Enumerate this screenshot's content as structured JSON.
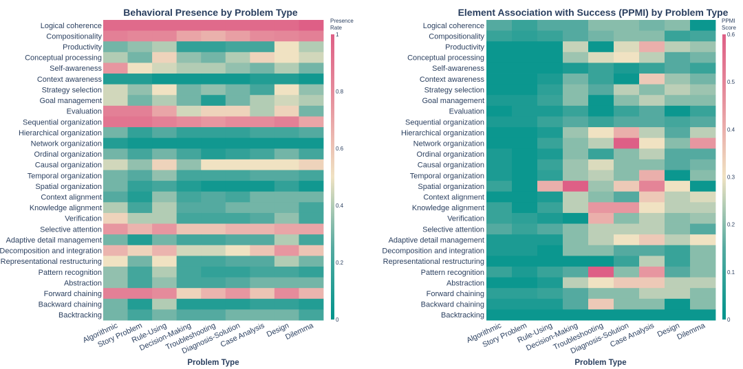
{
  "chart_data": [
    {
      "type": "heatmap",
      "title": "Behavioral Presence by Problem Type",
      "xlabel": "Problem Type",
      "ylabel": "",
      "colorbar_title": [
        "Presence",
        "Rate"
      ],
      "colorbar_ticks": [
        "0",
        "0.2",
        "0.4",
        "0.6",
        "0.8",
        "1"
      ],
      "zlim": [
        0,
        1
      ],
      "rows": [
        "Logical coherence",
        "Compositionality",
        "Productivity",
        "Conceptual processing",
        "Self-awareness",
        "Context awareness",
        "Strategy selection",
        "Goal management",
        "Evaluation",
        "Sequential organization",
        "Hierarchical organization",
        "Network organization",
        "Ordinal organization",
        "Causal organization",
        "Temporal organization",
        "Spatial organization",
        "Context alignment",
        "Knowledge alignment",
        "Verification",
        "Selective attention",
        "Adaptive detail management",
        "Decomposition and integration",
        "Representational restructuring",
        "Pattern recognition",
        "Abstraction",
        "Forward chaining",
        "Backward chaining",
        "Backtracking"
      ],
      "columns": [
        "Algorithmic",
        "Story Problem",
        "Rule-Using",
        "Decision-Making",
        "Troubleshooting",
        "Diagnosis-Solution",
        "Case Analysis",
        "Design",
        "Dilemma"
      ],
      "values": [
        [
          0.95,
          0.95,
          0.95,
          0.95,
          0.95,
          0.95,
          0.95,
          0.95,
          1.0
        ],
        [
          0.85,
          0.82,
          0.82,
          0.7,
          0.66,
          0.72,
          0.8,
          0.82,
          0.85
        ],
        [
          0.3,
          0.35,
          0.4,
          0.15,
          0.15,
          0.2,
          0.2,
          0.5,
          0.4
        ],
        [
          0.4,
          0.3,
          0.55,
          0.35,
          0.3,
          0.4,
          0.55,
          0.5,
          0.45
        ],
        [
          0.75,
          0.5,
          0.45,
          0.4,
          0.4,
          0.35,
          0.3,
          0.4,
          0.3
        ],
        [
          0.1,
          0.1,
          0.05,
          0.05,
          0.05,
          0.05,
          0.1,
          0.1,
          0.05
        ],
        [
          0.45,
          0.35,
          0.5,
          0.3,
          0.35,
          0.3,
          0.2,
          0.5,
          0.35
        ],
        [
          0.45,
          0.3,
          0.4,
          0.3,
          0.1,
          0.3,
          0.4,
          0.45,
          0.4
        ],
        [
          0.85,
          0.85,
          0.7,
          0.45,
          0.55,
          0.55,
          0.4,
          0.55,
          0.3
        ],
        [
          0.9,
          0.9,
          0.85,
          0.8,
          0.75,
          0.8,
          0.8,
          0.85,
          0.7
        ],
        [
          0.3,
          0.15,
          0.25,
          0.15,
          0.15,
          0.15,
          0.2,
          0.2,
          0.25
        ],
        [
          0.1,
          0.05,
          0.05,
          0.05,
          0.05,
          0.05,
          0.05,
          0.05,
          0.05
        ],
        [
          0.3,
          0.2,
          0.3,
          0.2,
          0.1,
          0.15,
          0.2,
          0.3,
          0.2
        ],
        [
          0.45,
          0.35,
          0.55,
          0.35,
          0.5,
          0.5,
          0.5,
          0.5,
          0.55
        ],
        [
          0.3,
          0.25,
          0.35,
          0.2,
          0.2,
          0.2,
          0.25,
          0.25,
          0.2
        ],
        [
          0.3,
          0.15,
          0.2,
          0.1,
          0.05,
          0.05,
          0.05,
          0.15,
          0.05
        ],
        [
          0.25,
          0.1,
          0.35,
          0.2,
          0.25,
          0.2,
          0.3,
          0.3,
          0.3
        ],
        [
          0.4,
          0.2,
          0.4,
          0.25,
          0.25,
          0.3,
          0.3,
          0.3,
          0.2
        ],
        [
          0.55,
          0.4,
          0.4,
          0.2,
          0.2,
          0.2,
          0.25,
          0.35,
          0.2
        ],
        [
          0.75,
          0.65,
          0.75,
          0.6,
          0.6,
          0.65,
          0.65,
          0.7,
          0.7
        ],
        [
          0.3,
          0.1,
          0.3,
          0.2,
          0.2,
          0.25,
          0.25,
          0.4,
          0.2
        ],
        [
          0.65,
          0.55,
          0.65,
          0.45,
          0.45,
          0.5,
          0.6,
          0.75,
          0.6
        ],
        [
          0.5,
          0.3,
          0.5,
          0.2,
          0.2,
          0.25,
          0.25,
          0.4,
          0.3
        ],
        [
          0.35,
          0.2,
          0.4,
          0.2,
          0.15,
          0.15,
          0.2,
          0.2,
          0.15
        ],
        [
          0.35,
          0.2,
          0.35,
          0.2,
          0.2,
          0.25,
          0.3,
          0.3,
          0.3
        ],
        [
          0.85,
          0.85,
          0.8,
          0.55,
          0.65,
          0.75,
          0.6,
          0.8,
          0.65
        ],
        [
          0.3,
          0.1,
          0.4,
          0.1,
          0.1,
          0.1,
          0.15,
          0.15,
          0.1
        ],
        [
          0.3,
          0.2,
          0.3,
          0.25,
          0.25,
          0.3,
          0.3,
          0.3,
          0.2
        ]
      ]
    },
    {
      "type": "heatmap",
      "title": "Element Association with Success (PPMI) by Problem Type",
      "xlabel": "Problem Type",
      "ylabel": "",
      "colorbar_title": [
        "PPMI",
        "Score"
      ],
      "colorbar_ticks": [
        "0",
        "0.1",
        "0.2",
        "0.3",
        "0.4",
        "0.5",
        "0.6"
      ],
      "zlim": [
        0,
        0.6
      ],
      "rows": [
        "Logical coherence",
        "Compositionality",
        "Productivity",
        "Conceptual processing",
        "Self-awareness",
        "Context awareness",
        "Strategy selection",
        "Goal management",
        "Evaluation",
        "Sequential organization",
        "Hierarchical organization",
        "Network organization",
        "Ordinal organization",
        "Causal organization",
        "Temporal organization",
        "Spatial organization",
        "Context alignment",
        "Knowledge alignment",
        "Verification",
        "Selective attention",
        "Adaptive detail management",
        "Decomposition and integration",
        "Representational restructuring",
        "Pattern recognition",
        "Abstraction",
        "Forward chaining",
        "Backward chaining",
        "Backtracking"
      ],
      "columns": [
        "Algorithmic",
        "Story Problem",
        "Rule-Using",
        "Decision-Making",
        "Troubleshooting",
        "Diagnosis-Solution",
        "Case Analysis",
        "Design",
        "Dilemma"
      ],
      "values": [
        [
          0.15,
          0.1,
          0.15,
          0.15,
          0.2,
          0.2,
          0.18,
          0.2,
          0.02
        ],
        [
          0.1,
          0.08,
          0.1,
          0.15,
          0.18,
          0.2,
          0.2,
          0.1,
          0.12
        ],
        [
          0.02,
          0.02,
          0.02,
          0.26,
          0.02,
          0.28,
          0.4,
          0.25,
          0.22
        ],
        [
          0.02,
          0.02,
          0.02,
          0.22,
          0.28,
          0.3,
          0.25,
          0.15,
          0.18
        ],
        [
          0.02,
          0.02,
          0.02,
          0.05,
          0.1,
          0.05,
          0.1,
          0.15,
          0.1
        ],
        [
          0.02,
          0.02,
          0.05,
          0.18,
          0.1,
          0.02,
          0.35,
          0.22,
          0.18
        ],
        [
          0.02,
          0.02,
          0.08,
          0.2,
          0.15,
          0.25,
          0.2,
          0.25,
          0.22
        ],
        [
          0.05,
          0.05,
          0.1,
          0.2,
          0.02,
          0.2,
          0.25,
          0.2,
          0.2
        ],
        [
          0.02,
          0.05,
          0.05,
          0.1,
          0.02,
          0.1,
          0.15,
          0.02,
          0.1
        ],
        [
          0.05,
          0.05,
          0.1,
          0.15,
          0.1,
          0.15,
          0.15,
          0.12,
          0.15
        ],
        [
          0.02,
          0.02,
          0.05,
          0.22,
          0.3,
          0.4,
          0.25,
          0.15,
          0.25
        ],
        [
          0.02,
          0.02,
          0.1,
          0.2,
          0.25,
          0.6,
          0.3,
          0.2,
          0.45
        ],
        [
          0.05,
          0.02,
          0.05,
          0.2,
          0.1,
          0.2,
          0.25,
          0.15,
          0.15
        ],
        [
          0.05,
          0.02,
          0.1,
          0.22,
          0.28,
          0.2,
          0.2,
          0.15,
          0.18
        ],
        [
          0.05,
          0.02,
          0.08,
          0.22,
          0.25,
          0.2,
          0.4,
          0.02,
          0.2
        ],
        [
          0.1,
          0.02,
          0.4,
          0.6,
          0.22,
          0.35,
          0.5,
          0.3,
          0.02
        ],
        [
          0.02,
          0.02,
          0.05,
          0.25,
          0.2,
          0.15,
          0.35,
          0.25,
          0.28
        ],
        [
          0.1,
          0.02,
          0.1,
          0.25,
          0.45,
          0.45,
          0.3,
          0.25,
          0.25
        ],
        [
          0.1,
          0.08,
          0.05,
          0.02,
          0.4,
          0.2,
          0.25,
          0.2,
          0.22
        ],
        [
          0.15,
          0.1,
          0.15,
          0.2,
          0.25,
          0.25,
          0.25,
          0.2,
          0.15
        ],
        [
          0.05,
          0.05,
          0.05,
          0.2,
          0.25,
          0.3,
          0.35,
          0.25,
          0.3
        ],
        [
          0.05,
          0.05,
          0.02,
          0.2,
          0.2,
          0.15,
          0.15,
          0.1,
          0.2
        ],
        [
          0.02,
          0.02,
          0.02,
          0.02,
          0.02,
          0.1,
          0.25,
          0.1,
          0.2
        ],
        [
          0.1,
          0.05,
          0.1,
          0.15,
          0.6,
          0.2,
          0.45,
          0.15,
          0.2
        ],
        [
          0.02,
          0.02,
          0.05,
          0.25,
          0.3,
          0.35,
          0.35,
          0.25,
          0.25
        ],
        [
          0.08,
          0.08,
          0.1,
          0.15,
          0.2,
          0.2,
          0.25,
          0.25,
          0.2
        ],
        [
          0.05,
          0.05,
          0.05,
          0.15,
          0.35,
          0.2,
          0.2,
          0.02,
          0.2
        ],
        [
          0.02,
          0.02,
          0.02,
          0.02,
          0.02,
          0.02,
          0.02,
          0.02,
          0.02
        ]
      ]
    }
  ]
}
